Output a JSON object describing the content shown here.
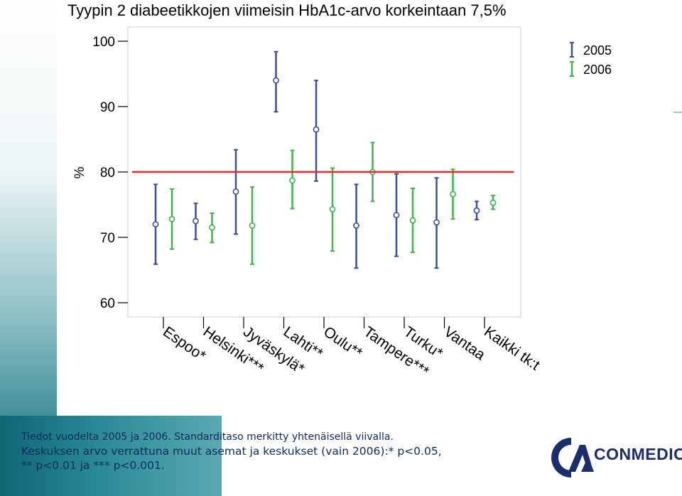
{
  "chart_data": {
    "type": "errorbar",
    "title": "Tyypin 2 diabeetikkojen viimeisin HbA1c-arvo korkeintaan 7,5%",
    "ylabel": "%",
    "ylim": [
      60,
      100
    ],
    "yticks": [
      60,
      70,
      80,
      90,
      100
    ],
    "categories": [
      "Espoo*",
      "Helsinki***",
      "Jyväskylä*",
      "Lahti**",
      "Oulu**",
      "Tampere***",
      "Turku*",
      "Vantaa",
      "Kaikki tk:t"
    ],
    "reference_line": 80,
    "series": [
      {
        "name": "2005",
        "color": "#3a4f9a",
        "values": [
          72.0,
          72.5,
          77.0,
          94.0,
          86.5,
          71.8,
          73.4,
          72.3,
          74.1
        ],
        "lower": [
          65.9,
          69.7,
          70.5,
          89.2,
          78.6,
          65.3,
          67.1,
          65.3,
          72.7
        ],
        "upper": [
          78.1,
          75.2,
          83.4,
          98.4,
          94.0,
          78.1,
          79.7,
          79.1,
          75.5
        ]
      },
      {
        "name": "2006",
        "color": "#3fb44a",
        "values": [
          72.8,
          71.5,
          71.8,
          78.7,
          74.3,
          80.0,
          72.6,
          76.6,
          75.3
        ],
        "lower": [
          68.2,
          69.2,
          65.9,
          74.4,
          67.9,
          75.5,
          67.7,
          72.8,
          74.3
        ],
        "upper": [
          77.4,
          73.7,
          77.7,
          83.3,
          80.6,
          84.5,
          77.5,
          80.4,
          76.4
        ]
      }
    ],
    "legend": "top-right"
  },
  "footer": {
    "line1": "Tiedot vuodelta 2005 ja 2006. Standarditaso merkitty yhtenäisellä viivalla.",
    "line2": "Keskuksen arvo verrattuna muut asemat ja keskukset (vain 2006):* p<0.05,",
    "line3": "** p<0.01 ja *** p<0.001."
  },
  "logo": {
    "text": "CONMEDIC",
    "color": "#1a2d6e"
  }
}
